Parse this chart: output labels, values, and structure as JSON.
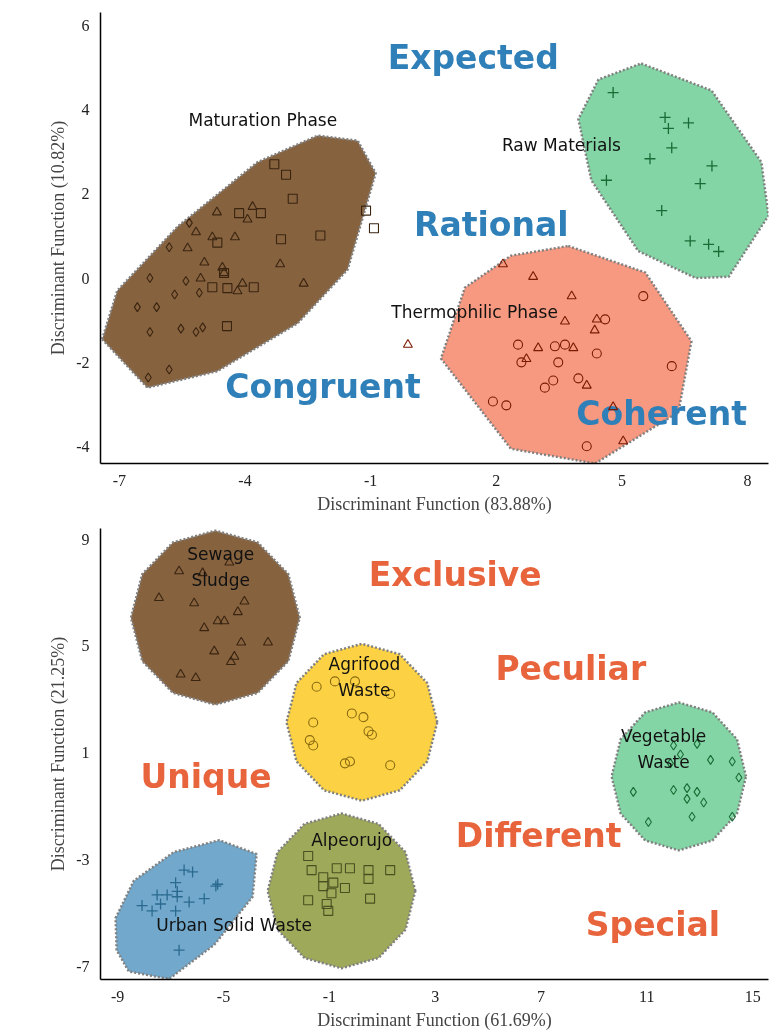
{
  "chart_data": [
    {
      "type": "scatter",
      "xlabel": "Discriminant Function (83.88%)",
      "ylabel": "Discriminant Function (10.82%)",
      "xlim": [
        -7.45,
        8.5
      ],
      "ylim": [
        -4.4,
        6.3
      ],
      "xticks": [
        -7,
        -4,
        -1,
        2,
        5,
        8
      ],
      "yticks": [
        -4,
        -2,
        0,
        2,
        4,
        6
      ],
      "grid": false,
      "annotations": [
        "Expected",
        "Rational",
        "Congruent",
        "Coherent"
      ],
      "series": [
        {
          "type": "area",
          "name": "Maturation Phase",
          "color": "#7f5a35",
          "x": [
            -7.41,
            -6.33,
            -4.66,
            -2.74,
            -1.55,
            -0.88,
            -1.31,
            -2.26,
            -3.7,
            -5.61,
            -7.05
          ],
          "values": [
            -1.45,
            -2.6,
            -2.21,
            -1.07,
            0.2,
            2.49,
            3.26,
            3.38,
            2.75,
            1.22,
            -0.3
          ]
        },
        {
          "type": "area",
          "name": "Raw Materials",
          "color": "#7dd3a0",
          "x": [
            5.46,
            7.14,
            8.33,
            8.5,
            7.55,
            6.76,
            5.39,
            4.27,
            3.96,
            4.44
          ],
          "values": [
            5.09,
            4.45,
            2.75,
            1.48,
            0.03,
            0,
            0.64,
            2.32,
            3.77,
            4.71
          ]
        },
        {
          "type": "area",
          "name": "Thermophilic Phase",
          "color": "#f79479",
          "x": [
            3.72,
            5.56,
            6.66,
            6.35,
            4.36,
            2.35,
            0.68,
            1.25,
            2.35
          ],
          "values": [
            0.76,
            0.13,
            -1.5,
            -3.18,
            -4.4,
            -4.05,
            -1.91,
            -0.23,
            0.53
          ]
        },
        {
          "marker": "diamond",
          "color": "#3a2410",
          "x": [
            -5.33,
            -5.81,
            -6.27,
            -5.41,
            -5.68,
            -5.09,
            -6.57,
            -6.11,
            -6.27,
            -5.53,
            -5.17,
            -5.01,
            -5.81,
            -6.31
          ],
          "values": [
            1.31,
            0.73,
            0.0,
            -0.07,
            -0.39,
            -0.35,
            -0.69,
            -0.69,
            -1.28,
            -1.2,
            -1.28,
            -1.17,
            -2.17,
            -2.36
          ]
        },
        {
          "marker": "triangle",
          "color": "#3a2410",
          "x": [
            -4.67,
            -3.82,
            -3.94,
            -5.17,
            -5.37,
            -4.78,
            -4.24,
            -4.97,
            -4.54,
            -3.16,
            -5.06,
            -4.06,
            -4.18,
            -2.6,
            -4.5
          ],
          "values": [
            1.56,
            1.69,
            1.39,
            1.09,
            0.71,
            0.97,
            0.97,
            0.37,
            0.25,
            0.33,
            -0.01,
            -0.13,
            -0.31,
            -0.13,
            0.12
          ]
        },
        {
          "marker": "square",
          "color": "#3a2410",
          "x": [
            -3.3,
            -3.02,
            -2.86,
            -4.14,
            -3.62,
            -4.66,
            -3.14,
            -2.2,
            -4.5,
            -4.78,
            -4.42,
            -3.79,
            -4.43,
            -1.11,
            -0.92
          ],
          "values": [
            2.7,
            2.45,
            1.88,
            1.54,
            1.54,
            0.84,
            0.92,
            1.01,
            0.12,
            -0.22,
            -0.24,
            -0.22,
            -1.14,
            1.6,
            1.18
          ]
        },
        {
          "marker": "triangle",
          "color": "#7a1a00",
          "x": [
            2.16,
            -0.11,
            2.88,
            3.8,
            3.64,
            4.4,
            4.35,
            3.0,
            3.84,
            2.72,
            4.16,
            5.03,
            4.79
          ],
          "values": [
            0.33,
            -1.58,
            0.03,
            -0.43,
            -1.03,
            -0.98,
            -1.24,
            -1.66,
            -1.66,
            -1.92,
            -2.55,
            -3.87,
            -3.06
          ]
        },
        {
          "marker": "circle",
          "color": "#7a1a00",
          "x": [
            5.51,
            4.6,
            2.52,
            3.4,
            3.64,
            4.4,
            3.48,
            2.6,
            6.19,
            3.36,
            3.16,
            3.96,
            1.92,
            2.24,
            4.16
          ],
          "values": [
            -0.43,
            -0.98,
            -1.58,
            -1.62,
            -1.58,
            -1.79,
            -2.0,
            -2.0,
            -2.09,
            -2.43,
            -2.6,
            -2.38,
            -2.93,
            -3.02,
            -3.99
          ]
        },
        {
          "marker": "cross",
          "color": "#1a6b35",
          "x": [
            4.79,
            6.03,
            6.59,
            6.11,
            6.19,
            5.67,
            7.15,
            4.63,
            6.87,
            5.95,
            6.63,
            7.07,
            7.31
          ],
          "values": [
            4.4,
            3.81,
            3.68,
            3.55,
            3.09,
            2.83,
            2.66,
            2.32,
            2.24,
            1.6,
            0.88,
            0.8,
            0.63
          ]
        }
      ]
    },
    {
      "type": "scatter",
      "xlabel": "Discriminant Function (61.69%)",
      "ylabel": "Discriminant Function (21.25%)",
      "xlim": [
        -9.65,
        15.6
      ],
      "ylim": [
        -7.5,
        9.4
      ],
      "xticks": [
        -9,
        -5,
        -1,
        3,
        7,
        11,
        15
      ],
      "yticks": [
        -7,
        -3,
        1,
        5,
        9
      ],
      "grid": false,
      "annotations": [
        "Exclusive",
        "Peculiar",
        "Unique",
        "Different",
        "Special"
      ],
      "series": [
        {
          "type": "area",
          "name": "Sewage\nSludge",
          "color": "#7f5a35",
          "x": [
            -2.12,
            -2.55,
            -3.71,
            -5.31,
            -6.91,
            -8.07,
            -8.5,
            -8.07,
            -6.91,
            -5.31,
            -3.71,
            -2.55
          ],
          "values": [
            6.06,
            7.69,
            8.88,
            9.32,
            8.88,
            7.69,
            6.06,
            4.43,
            3.24,
            2.8,
            3.24,
            4.43
          ]
        },
        {
          "type": "area",
          "name": "Agrifood\nWaste",
          "color": "#fcd03a",
          "x": [
            3.08,
            2.7,
            1.66,
            0.23,
            -1.2,
            -2.24,
            -2.62,
            -2.24,
            -1.2,
            0.23,
            1.66,
            2.7
          ],
          "values": [
            2.14,
            3.61,
            4.69,
            5.08,
            4.69,
            3.61,
            2.14,
            0.67,
            -0.41,
            -0.8,
            -0.41,
            0.67
          ]
        },
        {
          "type": "area",
          "name": "Urban Solid Waste",
          "color": "#6aa3c8",
          "x": [
            -9.08,
            -8.39,
            -6.87,
            -5.16,
            -3.75,
            -3.9,
            -5.35,
            -7.06,
            -8.58,
            -9.04
          ],
          "values": [
            -5.2,
            -3.8,
            -2.72,
            -2.28,
            -2.8,
            -4.4,
            -6.2,
            -7.48,
            -7.2,
            -6.4
          ]
        },
        {
          "type": "area",
          "name": "Alpeorujo",
          "color": "#9aa451",
          "x": [
            2.25,
            1.88,
            0.86,
            -0.54,
            -1.94,
            -2.96,
            -3.33,
            -2.96,
            -1.94,
            -0.54,
            0.86,
            1.88
          ],
          "values": [
            -4.18,
            -2.73,
            -1.67,
            -1.28,
            -1.67,
            -2.73,
            -4.18,
            -5.63,
            -6.69,
            -7.08,
            -6.69,
            -5.63
          ]
        },
        {
          "type": "area",
          "name": "Vegetable\nWaste",
          "color": "#7dd3a0",
          "x": [
            14.75,
            14.41,
            13.48,
            12.21,
            10.94,
            10.01,
            9.67,
            10.01,
            10.94,
            12.21,
            13.48,
            14.41
          ],
          "values": [
            0.11,
            1.5,
            2.51,
            2.88,
            2.51,
            1.5,
            0.11,
            -1.28,
            -2.29,
            -2.66,
            -2.29,
            -1.28
          ]
        },
        {
          "marker": "triangle",
          "color": "#3a2410",
          "x": [
            -6.68,
            -5.79,
            -4.78,
            -7.44,
            -6.11,
            -4.21,
            -4.46,
            -5.22,
            -4.97,
            -5.73,
            -4.33,
            -3.32,
            -5.35,
            -4.59,
            -4.72,
            -6.62,
            -6.05
          ],
          "values": [
            7.8,
            7.73,
            8.13,
            6.8,
            6.6,
            6.67,
            6.27,
            5.93,
            5.93,
            5.67,
            5.13,
            5.13,
            4.8,
            4.6,
            4.4,
            3.93,
            3.8
          ]
        },
        {
          "marker": "circle",
          "color": "#8a6a10",
          "x": [
            -1.48,
            -0.79,
            -0.03,
            1.3,
            -0.15,
            0.29,
            -1.61,
            0.48,
            0.61,
            -1.74,
            -1.61,
            -0.41,
            -0.22,
            1.3
          ],
          "values": [
            3.47,
            3.67,
            3.67,
            3.2,
            2.47,
            2.33,
            2.13,
            1.8,
            1.67,
            1.47,
            1.27,
            0.6,
            0.67,
            0.53
          ]
        },
        {
          "marker": "cross",
          "color": "#2a6a90",
          "x": [
            -6.49,
            -6.17,
            -6.81,
            -5.22,
            -5.29,
            -7.51,
            -7.13,
            -6.75,
            -6.75,
            -5.73,
            -8.08,
            -7.38,
            -6.3,
            -7.7,
            -6.81,
            -6.68
          ],
          "values": [
            -3.4,
            -3.47,
            -3.87,
            -3.93,
            -4.0,
            -4.33,
            -4.33,
            -4.2,
            -4.4,
            -4.47,
            -4.73,
            -4.67,
            -4.6,
            -4.93,
            -4.93,
            -6.4
          ]
        },
        {
          "marker": "square",
          "color": "#4a5020",
          "x": [
            -1.8,
            -1.67,
            -0.72,
            -0.22,
            0.48,
            1.3,
            -1.23,
            -0.85,
            0.48,
            -1.23,
            -0.41,
            -0.92,
            -1.8,
            0.54,
            -1.1,
            -1.04
          ],
          "values": [
            -2.87,
            -3.4,
            -3.33,
            -3.33,
            -3.4,
            -3.4,
            -3.67,
            -3.87,
            -3.73,
            -4.0,
            -4.07,
            -4.27,
            -4.53,
            -4.47,
            -4.67,
            -4.93
          ]
        },
        {
          "marker": "diamond",
          "color": "#1a6b35",
          "x": [
            12.01,
            12.9,
            12.27,
            13.41,
            14.23,
            14.48,
            11.89,
            10.49,
            12.01,
            12.52,
            12.9,
            12.52,
            13.15,
            11.06,
            12.71,
            14.23
          ],
          "values": [
            1.27,
            1.33,
            0.93,
            0.73,
            0.67,
            0.07,
            0.6,
            -0.47,
            -0.4,
            -0.33,
            -0.47,
            -0.73,
            -0.87,
            -1.6,
            -1.4,
            -1.4
          ]
        }
      ]
    }
  ]
}
